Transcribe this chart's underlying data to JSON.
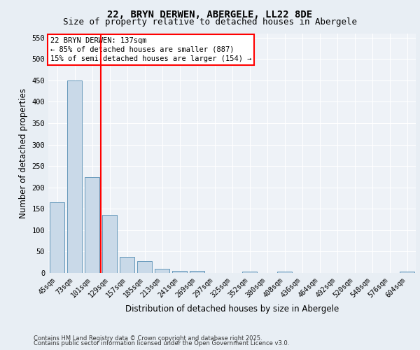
{
  "title_line1": "22, BRYN DERWEN, ABERGELE, LL22 8DE",
  "title_line2": "Size of property relative to detached houses in Abergele",
  "xlabel": "Distribution of detached houses by size in Abergele",
  "ylabel": "Number of detached properties",
  "categories": [
    "45sqm",
    "73sqm",
    "101sqm",
    "129sqm",
    "157sqm",
    "185sqm",
    "213sqm",
    "241sqm",
    "269sqm",
    "297sqm",
    "325sqm",
    "352sqm",
    "380sqm",
    "408sqm",
    "436sqm",
    "464sqm",
    "492sqm",
    "520sqm",
    "548sqm",
    "576sqm",
    "604sqm"
  ],
  "values": [
    165,
    450,
    224,
    135,
    38,
    27,
    10,
    5,
    5,
    0,
    0,
    3,
    0,
    3,
    0,
    0,
    0,
    0,
    0,
    0,
    3
  ],
  "bar_color": "#c9d9e8",
  "bar_edge_color": "#6699bb",
  "ylim": [
    0,
    560
  ],
  "yticks": [
    0,
    50,
    100,
    150,
    200,
    250,
    300,
    350,
    400,
    450,
    500,
    550
  ],
  "red_line_x": 2.5,
  "annotation_title": "22 BRYN DERWEN: 137sqm",
  "annotation_line2": "← 85% of detached houses are smaller (887)",
  "annotation_line3": "15% of semi-detached houses are larger (154) →",
  "bg_color": "#e8eef4",
  "plot_bg_color": "#eef2f7",
  "footer_line1": "Contains HM Land Registry data © Crown copyright and database right 2025.",
  "footer_line2": "Contains public sector information licensed under the Open Government Licence v3.0.",
  "title_fontsize": 10,
  "subtitle_fontsize": 9,
  "axis_label_fontsize": 8.5,
  "tick_fontsize": 7,
  "annotation_fontsize": 7.5,
  "footer_fontsize": 6
}
